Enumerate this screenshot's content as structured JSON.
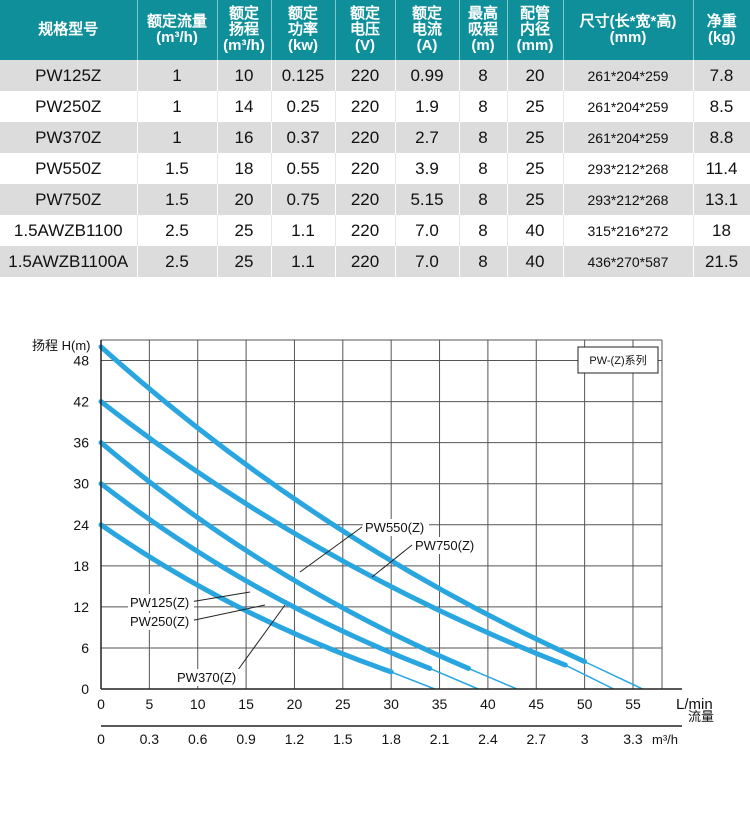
{
  "table": {
    "headers": [
      {
        "l1": "规格型号",
        "l2": ""
      },
      {
        "l1": "额定流量",
        "l2": "(m³/h)"
      },
      {
        "l1": "额定",
        "l2": "扬程",
        "l3": "(m³/h)"
      },
      {
        "l1": "额定",
        "l2": "功率",
        "l3": "(kw)"
      },
      {
        "l1": "额定",
        "l2": "电压",
        "l3": "(V)"
      },
      {
        "l1": "额定",
        "l2": "电流",
        "l3": "(A)"
      },
      {
        "l1": "最高",
        "l2": "吸程",
        "l3": "(m)"
      },
      {
        "l1": "配管",
        "l2": "内径",
        "l3": "(mm)"
      },
      {
        "l1": "尺寸(长*宽*高)",
        "l2": "(mm)"
      },
      {
        "l1": "净重",
        "l2": "(kg)"
      }
    ],
    "rows": [
      [
        "PW125Z",
        "1",
        "10",
        "0.125",
        "220",
        "0.99",
        "8",
        "20",
        "261*204*259",
        "7.8"
      ],
      [
        "PW250Z",
        "1",
        "14",
        "0.25",
        "220",
        "1.9",
        "8",
        "25",
        "261*204*259",
        "8.5"
      ],
      [
        "PW370Z",
        "1",
        "16",
        "0.37",
        "220",
        "2.7",
        "8",
        "25",
        "261*204*259",
        "8.8"
      ],
      [
        "PW550Z",
        "1.5",
        "18",
        "0.55",
        "220",
        "3.9",
        "8",
        "25",
        "293*212*268",
        "11.4"
      ],
      [
        "PW750Z",
        "1.5",
        "20",
        "0.75",
        "220",
        "5.15",
        "8",
        "25",
        "293*212*268",
        "13.1"
      ],
      [
        "1.5AWZB1100",
        "2.5",
        "25",
        "1.1",
        "220",
        "7.0",
        "8",
        "40",
        "315*216*272",
        "18"
      ],
      [
        "1.5AWZB1100A",
        "2.5",
        "25",
        "1.1",
        "220",
        "7.0",
        "8",
        "40",
        "436*270*587",
        "21.5"
      ]
    ]
  },
  "chart_data": {
    "type": "line",
    "title": "PW-(Z)系列",
    "ylabel": "扬程 H(m)",
    "xlabel": "流量",
    "x_unit": "L/min",
    "x2_unit": "m³/h",
    "ylim": [
      0,
      51
    ],
    "xlim": [
      0,
      58
    ],
    "y_ticks": [
      "0",
      "6",
      "12",
      "18",
      "24",
      "30",
      "36",
      "42",
      "48"
    ],
    "x_ticks": [
      "0",
      "5",
      "10",
      "15",
      "20",
      "25",
      "30",
      "35",
      "40",
      "45",
      "50",
      "55"
    ],
    "x2_ticks": [
      "0",
      "0.3",
      "0.6",
      "0.9",
      "1.2",
      "1.5",
      "1.8",
      "2.1",
      "2.4",
      "2.7",
      "3",
      "3.3"
    ],
    "grid": true,
    "line_color": "#29a6df",
    "series": [
      {
        "name": "PW125(Z)",
        "x": [
          0,
          30,
          34.5
        ],
        "y": [
          24,
          2.5,
          0
        ]
      },
      {
        "name": "PW250(Z)",
        "x": [
          0,
          34,
          39
        ],
        "y": [
          30,
          3,
          0
        ]
      },
      {
        "name": "PW370(Z)",
        "x": [
          0,
          38,
          43
        ],
        "y": [
          36,
          3,
          0
        ]
      },
      {
        "name": "PW550(Z)",
        "x": [
          0,
          48,
          53
        ],
        "y": [
          42,
          3.5,
          0
        ]
      },
      {
        "name": "PW750(Z)",
        "x": [
          0,
          50,
          56
        ],
        "y": [
          50,
          4,
          0
        ]
      }
    ],
    "annotations": [
      {
        "text": "PW550(Z)",
        "series": "PW550(Z)"
      },
      {
        "text": "PW750(Z)",
        "series": "PW750(Z)"
      },
      {
        "text": "PW125(Z)",
        "series": "PW125(Z)"
      },
      {
        "text": "PW250(Z)",
        "series": "PW250(Z)"
      },
      {
        "text": "PW370(Z)",
        "series": "PW370(Z)"
      }
    ]
  }
}
